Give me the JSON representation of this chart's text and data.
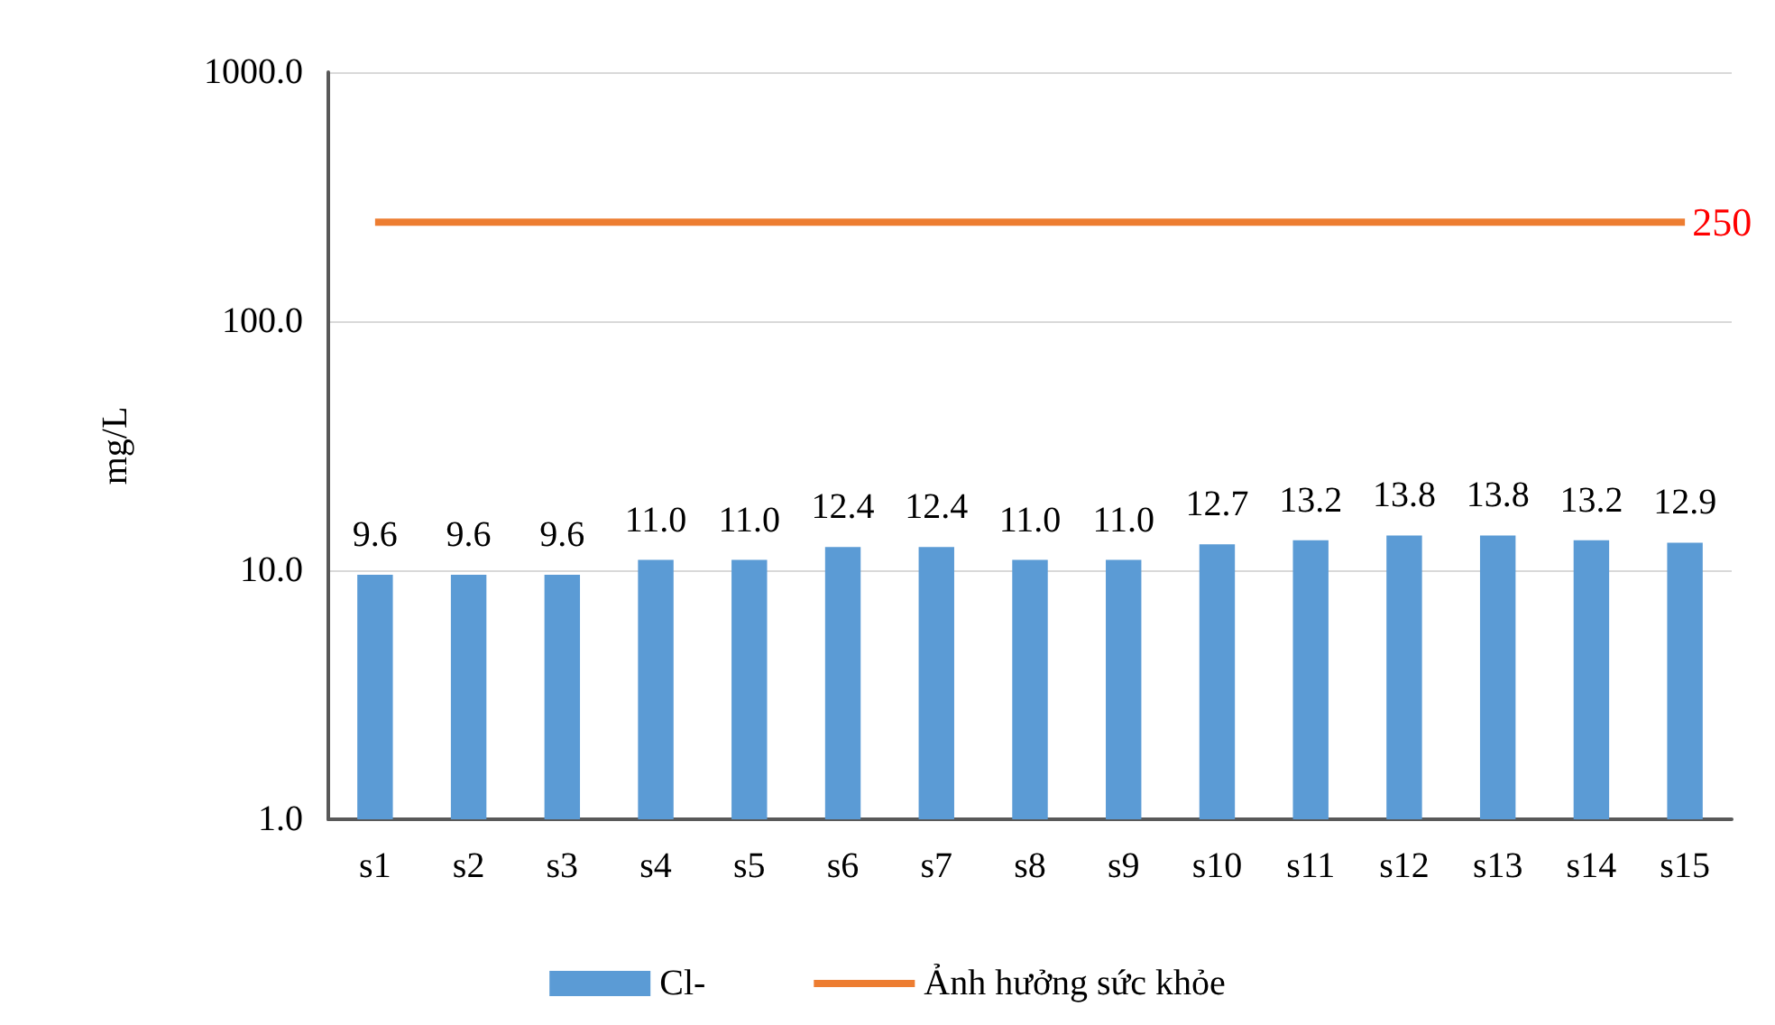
{
  "chart_data": {
    "type": "bar",
    "ylabel": "mg/L",
    "categories": [
      "s1",
      "s2",
      "s3",
      "s4",
      "s5",
      "s6",
      "s7",
      "s8",
      "s9",
      "s10",
      "s11",
      "s12",
      "s13",
      "s14",
      "s15"
    ],
    "series": [
      {
        "name": "Cl-",
        "color": "#5b9bd5",
        "values": [
          9.6,
          9.6,
          9.6,
          11.0,
          11.0,
          12.4,
          12.4,
          11.0,
          11.0,
          12.7,
          13.2,
          13.8,
          13.8,
          13.2,
          12.9
        ],
        "value_labels": [
          "9.6",
          "9.6",
          "9.6",
          "11.0",
          "11.0",
          "12.4",
          "12.4",
          "11.0",
          "11.0",
          "12.7",
          "13.2",
          "13.8",
          "13.8",
          "13.2",
          "12.9"
        ]
      },
      {
        "name": "Ảnh hưởng sức khỏe",
        "type": "line",
        "color": "#ed7d31",
        "marker": "none",
        "values": [
          250,
          250,
          250,
          250,
          250,
          250,
          250,
          250,
          250,
          250,
          250,
          250,
          250,
          250,
          250
        ]
      }
    ],
    "annotations": [
      {
        "text": "250",
        "x": "s15",
        "y": 250
      }
    ],
    "log": "y",
    "ylim": [
      1,
      1000
    ],
    "yticks": [
      {
        "value": 1,
        "label": "1.0"
      },
      {
        "value": 10,
        "label": "10.0"
      },
      {
        "value": 100,
        "label": "100.0"
      },
      {
        "value": 1000,
        "label": "1000.0"
      }
    ],
    "grid": "y",
    "legend": "bottom"
  }
}
